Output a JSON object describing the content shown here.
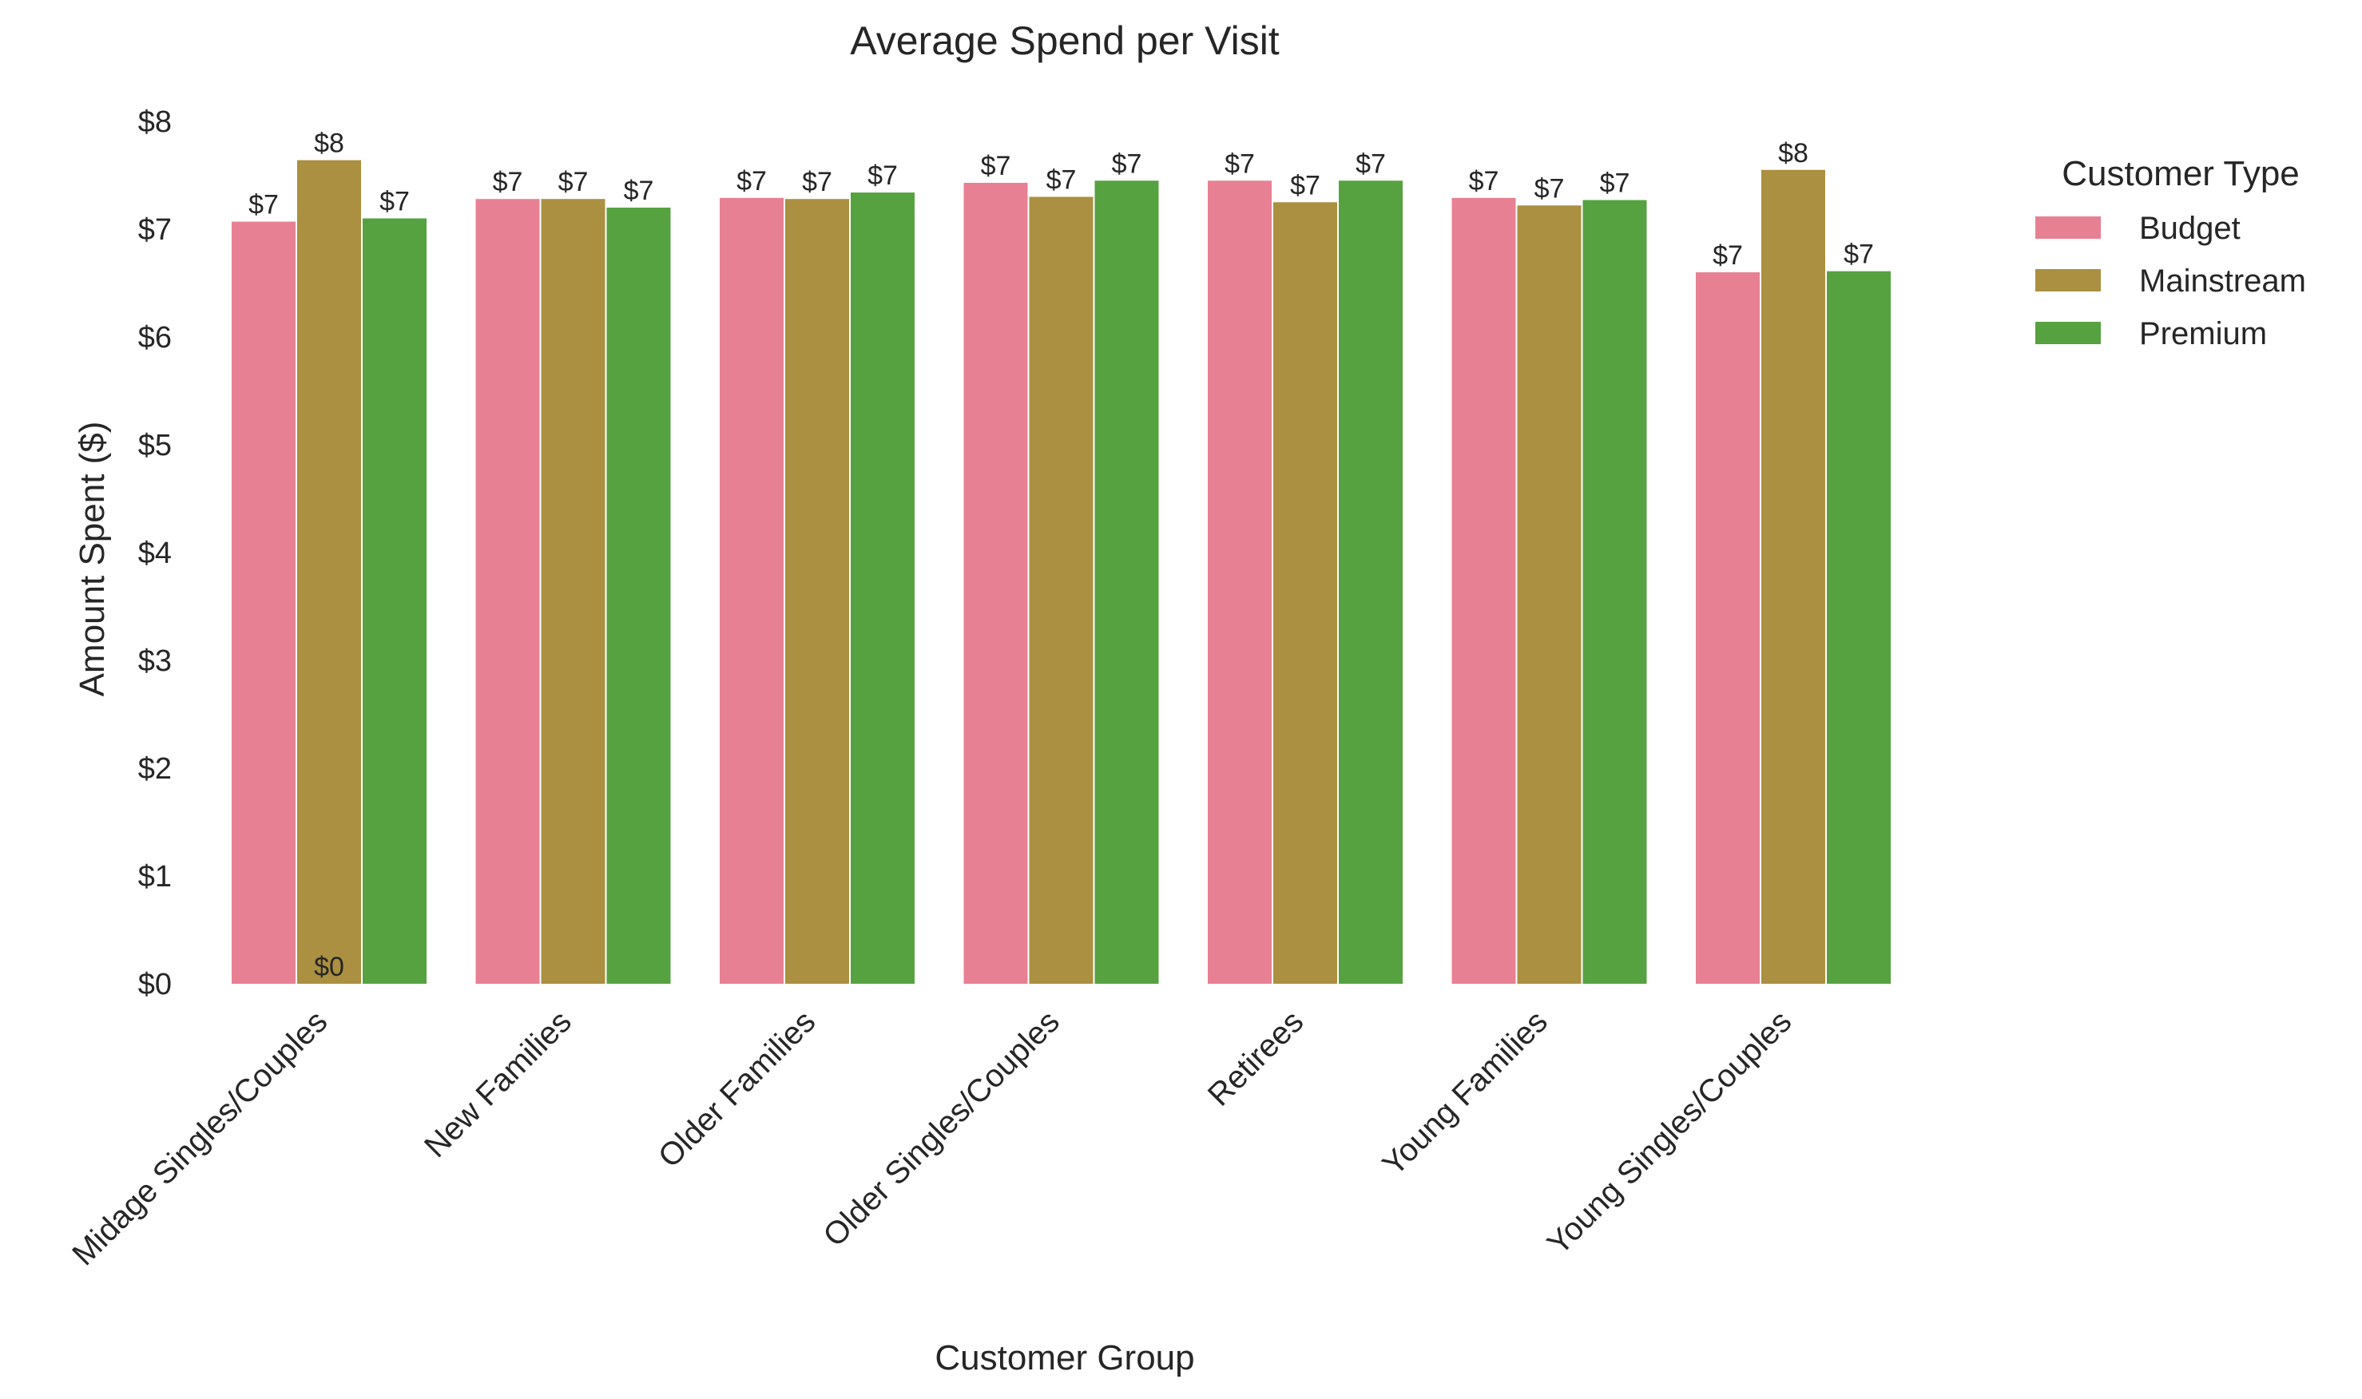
{
  "chart_data": {
    "type": "bar",
    "title": "Average Spend per Visit",
    "xlabel": "Customer Group",
    "ylabel": "Amount Spent ($)",
    "ylim": [
      0,
      8
    ],
    "y_ticks": [
      "$0",
      "$1",
      "$2",
      "$3",
      "$4",
      "$5",
      "$6",
      "$7",
      "$8"
    ],
    "categories": [
      "Midage Singles/Couples",
      "New Families",
      "Older Families",
      "Older Singles/Couples",
      "Retirees",
      "Young Families",
      "Young Singles/Couples"
    ],
    "legend_title": "Customer Type",
    "legend_position": "right",
    "grid": false,
    "series": [
      {
        "name": "Budget",
        "color": "#e88093",
        "values": [
          7.07,
          7.28,
          7.29,
          7.43,
          7.45,
          7.29,
          6.6
        ],
        "labels": [
          "$7",
          "$7",
          "$7",
          "$7",
          "$7",
          "$7",
          "$7"
        ]
      },
      {
        "name": "Mainstream",
        "color": "#aa9040",
        "values": [
          7.64,
          7.28,
          7.28,
          7.3,
          7.25,
          7.22,
          7.55
        ],
        "labels": [
          "$8",
          "$7",
          "$7",
          "$7",
          "$7",
          "$7",
          "$8"
        ]
      },
      {
        "name": "Premium",
        "color": "#56a240",
        "values": [
          7.1,
          7.2,
          7.34,
          7.45,
          7.45,
          7.27,
          6.61
        ],
        "labels": [
          "$7",
          "$7",
          "$7",
          "$7",
          "$7",
          "$7",
          "$7"
        ]
      }
    ],
    "annotations": [
      {
        "text": "$0",
        "category": "Midage Singles/Couples",
        "series": "Mainstream",
        "value": 0
      }
    ]
  }
}
